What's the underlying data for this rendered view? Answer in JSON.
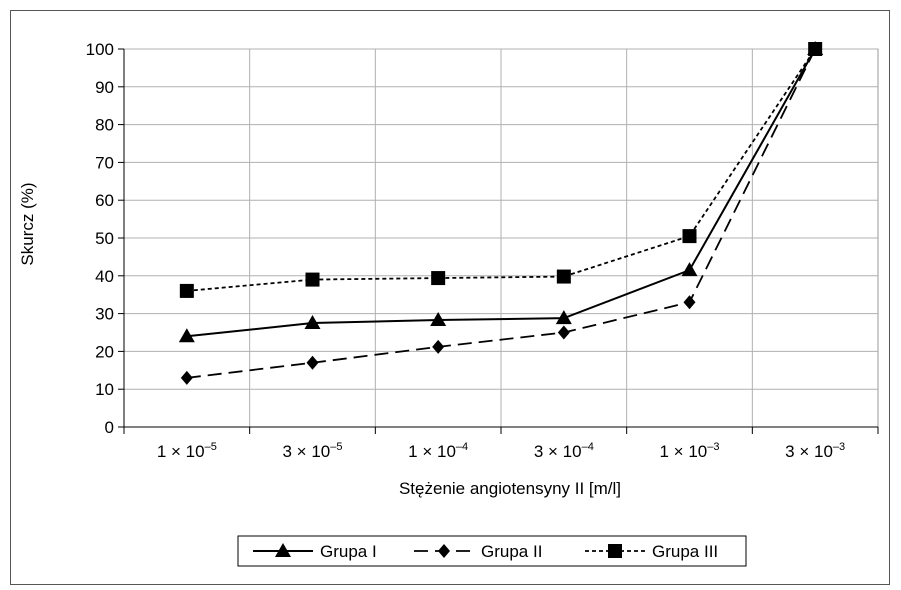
{
  "chart_data": {
    "type": "line",
    "xlabel": "Stężenie angiotensyny II [m/l]",
    "ylabel": "Skurcz (%)",
    "ylim": [
      0,
      100
    ],
    "yticks": [
      "0",
      "10",
      "20",
      "30",
      "40",
      "50",
      "60",
      "70",
      "80",
      "90",
      "100"
    ],
    "categories": [
      {
        "coef": "1 × 10",
        "exp": "–5"
      },
      {
        "coef": "3 × 10",
        "exp": "–5"
      },
      {
        "coef": "1 × 10",
        "exp": "–4"
      },
      {
        "coef": "3 × 10",
        "exp": "–4"
      },
      {
        "coef": "1 × 10",
        "exp": "–3"
      },
      {
        "coef": "3 × 10",
        "exp": "–3"
      }
    ],
    "grid": true,
    "legend_position": "bottom",
    "series": [
      {
        "name": "Grupa I",
        "values": [
          24,
          27.5,
          28.3,
          28.8,
          41.5,
          100
        ],
        "marker": "triangle",
        "dash": "solid"
      },
      {
        "name": "Grupa II",
        "values": [
          13,
          17,
          21.2,
          25,
          33,
          100
        ],
        "marker": "diamond",
        "dash": "dashed"
      },
      {
        "name": "Grupa III",
        "values": [
          36,
          39,
          39.4,
          39.8,
          50.5,
          100
        ],
        "marker": "square",
        "dash": "dotted"
      }
    ]
  }
}
